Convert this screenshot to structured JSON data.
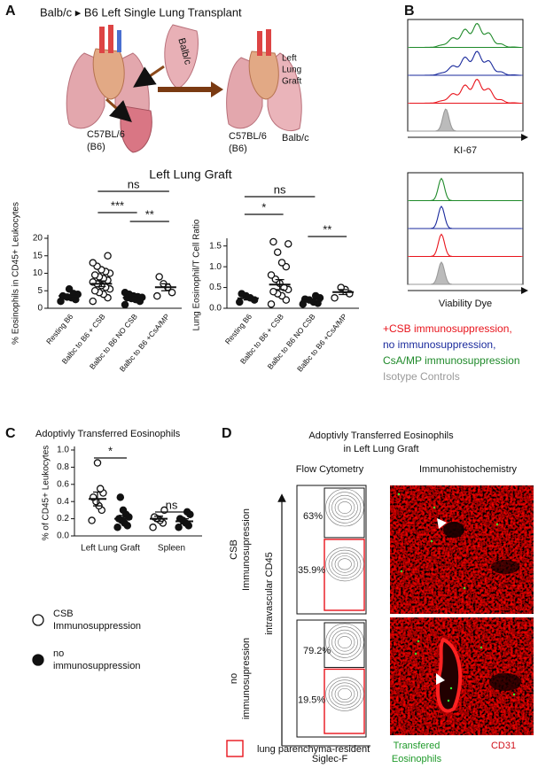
{
  "panel_labels": [
    "A",
    "B",
    "C",
    "D"
  ],
  "panel_a": {
    "title": "Balb/c ▸ B6 Left Single Lung Transplant",
    "donor_label": "Balb/c",
    "recipient_label": [
      "C57BL/6",
      "(B6)"
    ],
    "result_recipient_label": [
      "C57BL/6",
      "(B6)"
    ],
    "result_donor_label": "Balb/c",
    "graft_label": [
      "Left",
      "Lung",
      "Graft"
    ],
    "subtitle": "Left Lung Graft"
  },
  "panel_b": {
    "axis_labels": [
      "KI-67",
      "Viability Dye"
    ],
    "legend": [
      {
        "text": "+CSB immunosuppression,",
        "color": "#e8141c"
      },
      {
        "text": "no immunosuppression,",
        "color": "#1a2a9c"
      },
      {
        "text": "CsA/MP immunosuppression",
        "color": "#1f8a2a"
      },
      {
        "text": "Isotype Controls",
        "color": "#9a9a9a"
      }
    ]
  },
  "panel_d": {
    "title": [
      "Adoptivly Transferred Eosinophils",
      "in Left Lung Graft"
    ],
    "columns": [
      "Flow Cytometry",
      "Immunohistochemistry"
    ],
    "y_axis_label": "intravascular CD45",
    "x_axis_label": "Siglec-F",
    "rows": [
      {
        "label": [
          "CSB",
          "Immunosupression"
        ],
        "gates": [
          "63%",
          "35.9%"
        ]
      },
      {
        "label": [
          "no",
          "immunosupression"
        ],
        "gates": [
          "79.2%",
          "19.5%"
        ]
      }
    ],
    "ihc_legend": {
      "eosinophils": [
        "Transfered",
        "Eosinophils"
      ],
      "cd31": "CD31"
    },
    "gate_legend": "lung parenchyma-resident"
  },
  "chart_data": [
    {
      "type": "strip",
      "y_label": "% Eosinophils in CD45+ Leukocytes",
      "categories": [
        "Resting B6",
        "Balbc to B6 + CSB",
        "Balbc to B6 NO CSB",
        "Balbc to B6 +CsA/MP"
      ],
      "ylim": [
        0,
        20
      ],
      "yticks": [
        0,
        5,
        10,
        15,
        20
      ],
      "series": [
        {
          "filled": [
            true,
            false,
            true,
            false
          ],
          "values": [
            [
              2,
              2.5,
              3,
              3.2,
              3.5,
              4,
              4.2,
              5.5
            ],
            [
              2,
              3,
              4,
              4.5,
              5,
              5.5,
              6,
              6.5,
              7,
              7.5,
              8,
              8.5,
              9,
              9.5,
              10,
              10.5,
              11,
              12,
              13,
              15
            ],
            [
              1,
              2,
              2.5,
              2.8,
              3,
              3.1,
              3.3,
              3.5,
              4,
              4.5
            ],
            [
              3.5,
              4.5,
              6,
              7,
              9
            ]
          ],
          "means": [
            3.5,
            7,
            3,
            6
          ],
          "sems": [
            0.4,
            0.8,
            0.3,
            1
          ]
        }
      ],
      "significance": [
        "ns",
        "***",
        "**"
      ]
    },
    {
      "type": "strip",
      "y_label": "Lung Eosinophil/T Cell Ratio",
      "categories": [
        "Resting B6",
        "Balbc to B6 + CSB",
        "Balbc to B6 NO CSB",
        "Balbc to B6 +CsA/MP"
      ],
      "ylim": [
        0,
        1.6
      ],
      "yticks": [
        {
          "value": 0,
          "label": "0.0"
        },
        0.5,
        {
          "value": 1,
          "label": "1.0"
        },
        1.5
      ],
      "series": [
        {
          "filled": [
            true,
            false,
            true,
            false
          ],
          "values": [
            [
              0.15,
              0.2,
              0.25,
              0.3,
              0.35
            ],
            [
              0.1,
              0.2,
              0.3,
              0.35,
              0.4,
              0.45,
              0.5,
              0.6,
              0.7,
              0.8,
              1.0,
              1.1,
              1.35,
              1.6,
              1.55
            ],
            [
              0.1,
              0.12,
              0.15,
              0.2,
              0.22,
              0.25,
              0.3
            ],
            [
              0.25,
              0.35,
              0.45,
              0.5
            ]
          ],
          "means": [
            0.24,
            0.57,
            0.18,
            0.39
          ],
          "sems": [
            0.04,
            0.12,
            0.03,
            0.06
          ]
        }
      ],
      "significance": [
        "ns",
        "*",
        "**"
      ]
    },
    {
      "type": "strip",
      "title": "Adoptivly Transferred Eosinophils",
      "y_label": "% of CD45+ Leukocytes",
      "categories": [
        "Left Lung Graft",
        "Spleen"
      ],
      "ylim": [
        0,
        1.0
      ],
      "yticks": [
        {
          "value": 0,
          "label": "0.0"
        },
        0.2,
        0.4,
        0.6,
        0.8,
        {
          "value": 1,
          "label": "1.0"
        }
      ],
      "series": [
        {
          "name": [
            "CSB",
            "Immunosuppression"
          ],
          "filled": false,
          "values": [
            [
              0.18,
              0.3,
              0.35,
              0.4,
              0.45,
              0.5,
              0.55,
              0.85
            ],
            [
              0.1,
              0.15,
              0.18,
              0.2,
              0.22,
              0.3
            ]
          ],
          "means": [
            0.43,
            0.2
          ],
          "sems": [
            0.08,
            0.03
          ]
        },
        {
          "name": [
            "no",
            "immunosuppression"
          ],
          "filled": true,
          "values": [
            [
              0.1,
              0.12,
              0.15,
              0.18,
              0.2,
              0.22,
              0.25,
              0.3,
              0.45
            ],
            [
              0.1,
              0.12,
              0.15,
              0.18,
              0.2,
              0.25,
              0.28
            ]
          ],
          "means": [
            0.2,
            0.17
          ],
          "sems": [
            0.04,
            0.03
          ]
        }
      ],
      "significance": [
        "*",
        "ns"
      ]
    }
  ]
}
